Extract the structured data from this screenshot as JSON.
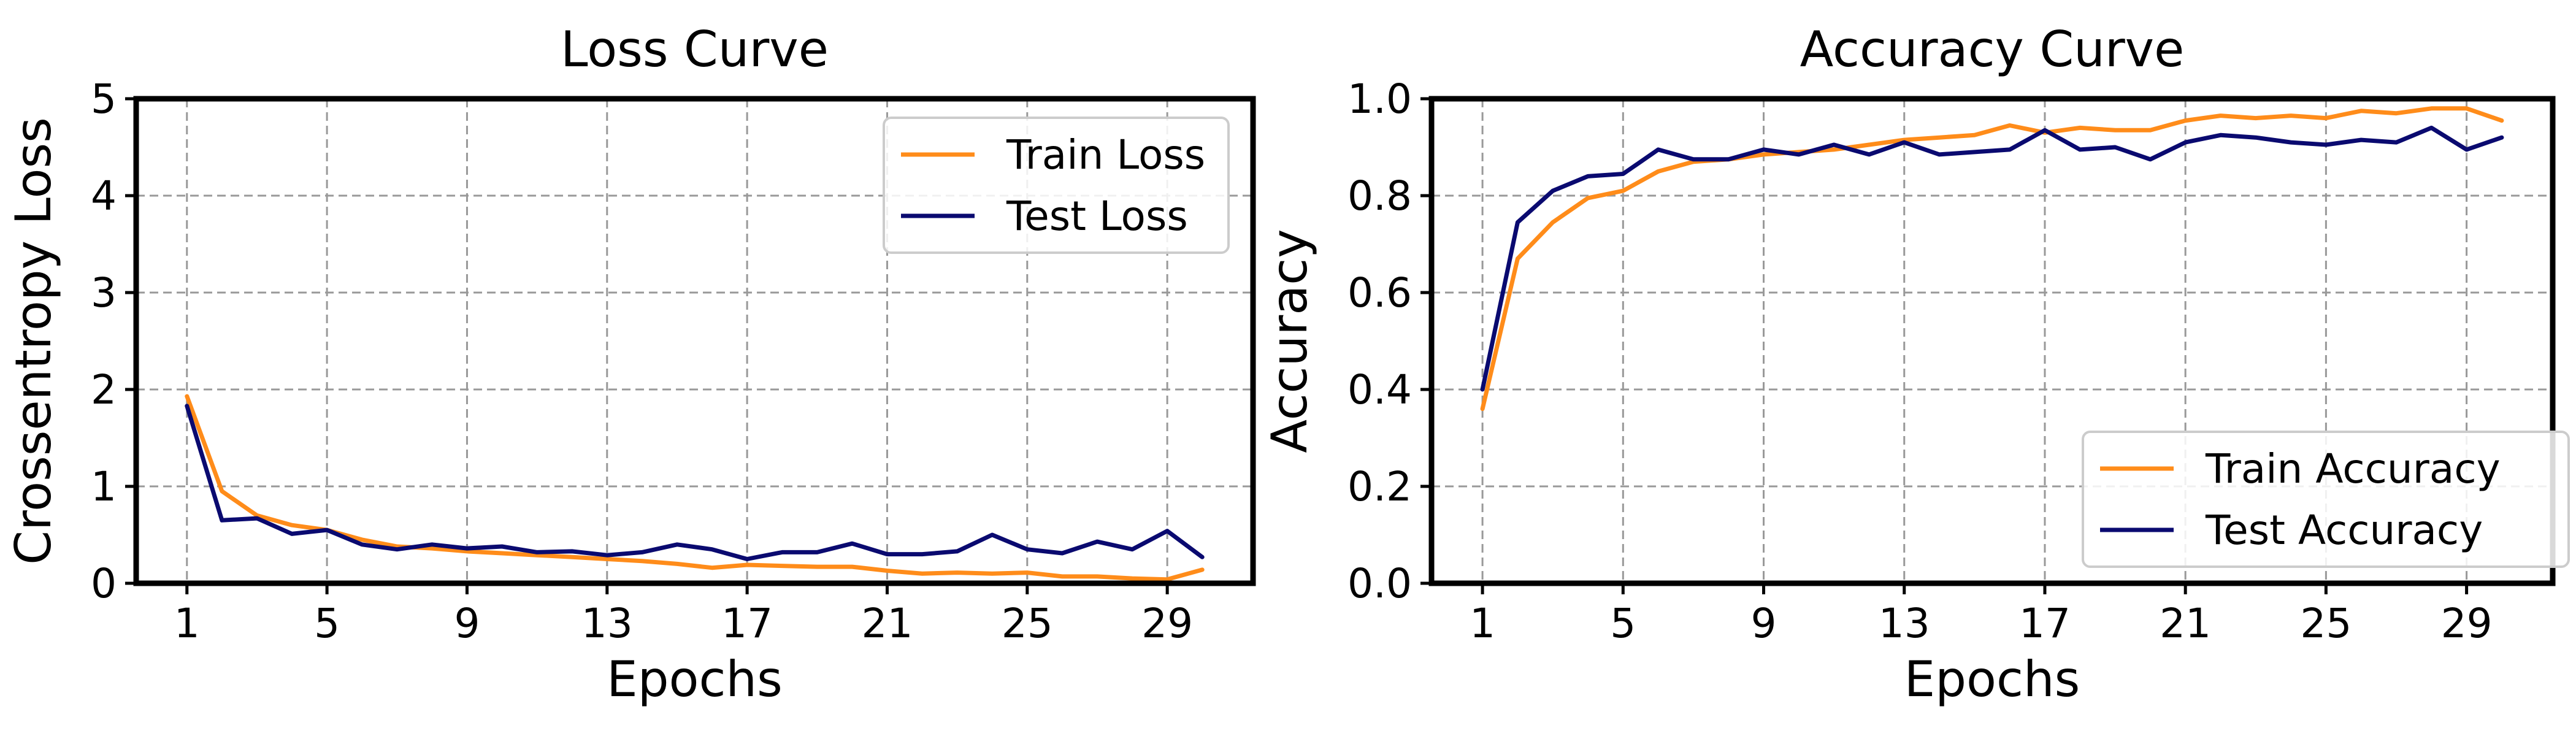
{
  "colors": {
    "train": "#ff8c1a",
    "test": "#0a0a70"
  },
  "chart_data": [
    {
      "type": "line",
      "title": "Loss Curve",
      "xlabel": "Epochs",
      "ylabel": "Crossentropy Loss",
      "x": [
        1,
        2,
        3,
        4,
        5,
        6,
        7,
        8,
        9,
        10,
        11,
        12,
        13,
        14,
        15,
        16,
        17,
        18,
        19,
        20,
        21,
        22,
        23,
        24,
        25,
        26,
        27,
        28,
        29,
        30
      ],
      "xlim": [
        -0.45,
        31.45
      ],
      "ylim": [
        0,
        5
      ],
      "xticks": [
        1,
        5,
        9,
        13,
        17,
        21,
        25,
        29
      ],
      "yticks": [
        0,
        1,
        2,
        3,
        4,
        5
      ],
      "grid": true,
      "legend_position": "top-right",
      "series": [
        {
          "name": "Train Loss",
          "color": "#ff8c1a",
          "values": [
            1.93,
            0.95,
            0.7,
            0.6,
            0.55,
            0.45,
            0.38,
            0.36,
            0.33,
            0.31,
            0.29,
            0.27,
            0.25,
            0.23,
            0.2,
            0.16,
            0.19,
            0.18,
            0.17,
            0.17,
            0.13,
            0.1,
            0.11,
            0.1,
            0.11,
            0.07,
            0.07,
            0.05,
            0.04,
            0.14
          ]
        },
        {
          "name": "Test Loss",
          "color": "#0a0a70",
          "values": [
            1.83,
            0.65,
            0.67,
            0.51,
            0.55,
            0.4,
            0.35,
            0.4,
            0.36,
            0.38,
            0.32,
            0.33,
            0.29,
            0.32,
            0.4,
            0.35,
            0.25,
            0.32,
            0.32,
            0.41,
            0.3,
            0.3,
            0.33,
            0.5,
            0.35,
            0.31,
            0.43,
            0.35,
            0.54,
            0.27
          ]
        }
      ]
    },
    {
      "type": "line",
      "title": "Accuracy Curve",
      "xlabel": "Epochs",
      "ylabel": "Accuracy",
      "x": [
        1,
        2,
        3,
        4,
        5,
        6,
        7,
        8,
        9,
        10,
        11,
        12,
        13,
        14,
        15,
        16,
        17,
        18,
        19,
        20,
        21,
        22,
        23,
        24,
        25,
        26,
        27,
        28,
        29,
        30
      ],
      "xlim": [
        -0.45,
        31.45
      ],
      "ylim": [
        0,
        1.0
      ],
      "xticks": [
        1,
        5,
        9,
        13,
        17,
        21,
        25,
        29
      ],
      "yticks": [
        0.0,
        0.2,
        0.4,
        0.6,
        0.8,
        1.0
      ],
      "ytick_labels": [
        "0.0",
        "0.2",
        "0.4",
        "0.6",
        "0.8",
        "1.0"
      ],
      "grid": true,
      "legend_position": "bottom-right",
      "series": [
        {
          "name": "Train Accuracy",
          "color": "#ff8c1a",
          "values": [
            0.36,
            0.67,
            0.745,
            0.795,
            0.81,
            0.85,
            0.87,
            0.875,
            0.885,
            0.89,
            0.895,
            0.905,
            0.915,
            0.92,
            0.925,
            0.945,
            0.93,
            0.94,
            0.935,
            0.935,
            0.955,
            0.965,
            0.96,
            0.965,
            0.96,
            0.975,
            0.97,
            0.98,
            0.98,
            0.955
          ]
        },
        {
          "name": "Test Accuracy",
          "color": "#0a0a70",
          "values": [
            0.4,
            0.745,
            0.81,
            0.84,
            0.845,
            0.895,
            0.875,
            0.875,
            0.895,
            0.885,
            0.905,
            0.885,
            0.91,
            0.885,
            0.89,
            0.895,
            0.935,
            0.895,
            0.9,
            0.875,
            0.91,
            0.925,
            0.92,
            0.91,
            0.905,
            0.915,
            0.91,
            0.94,
            0.895,
            0.92
          ]
        }
      ]
    }
  ]
}
